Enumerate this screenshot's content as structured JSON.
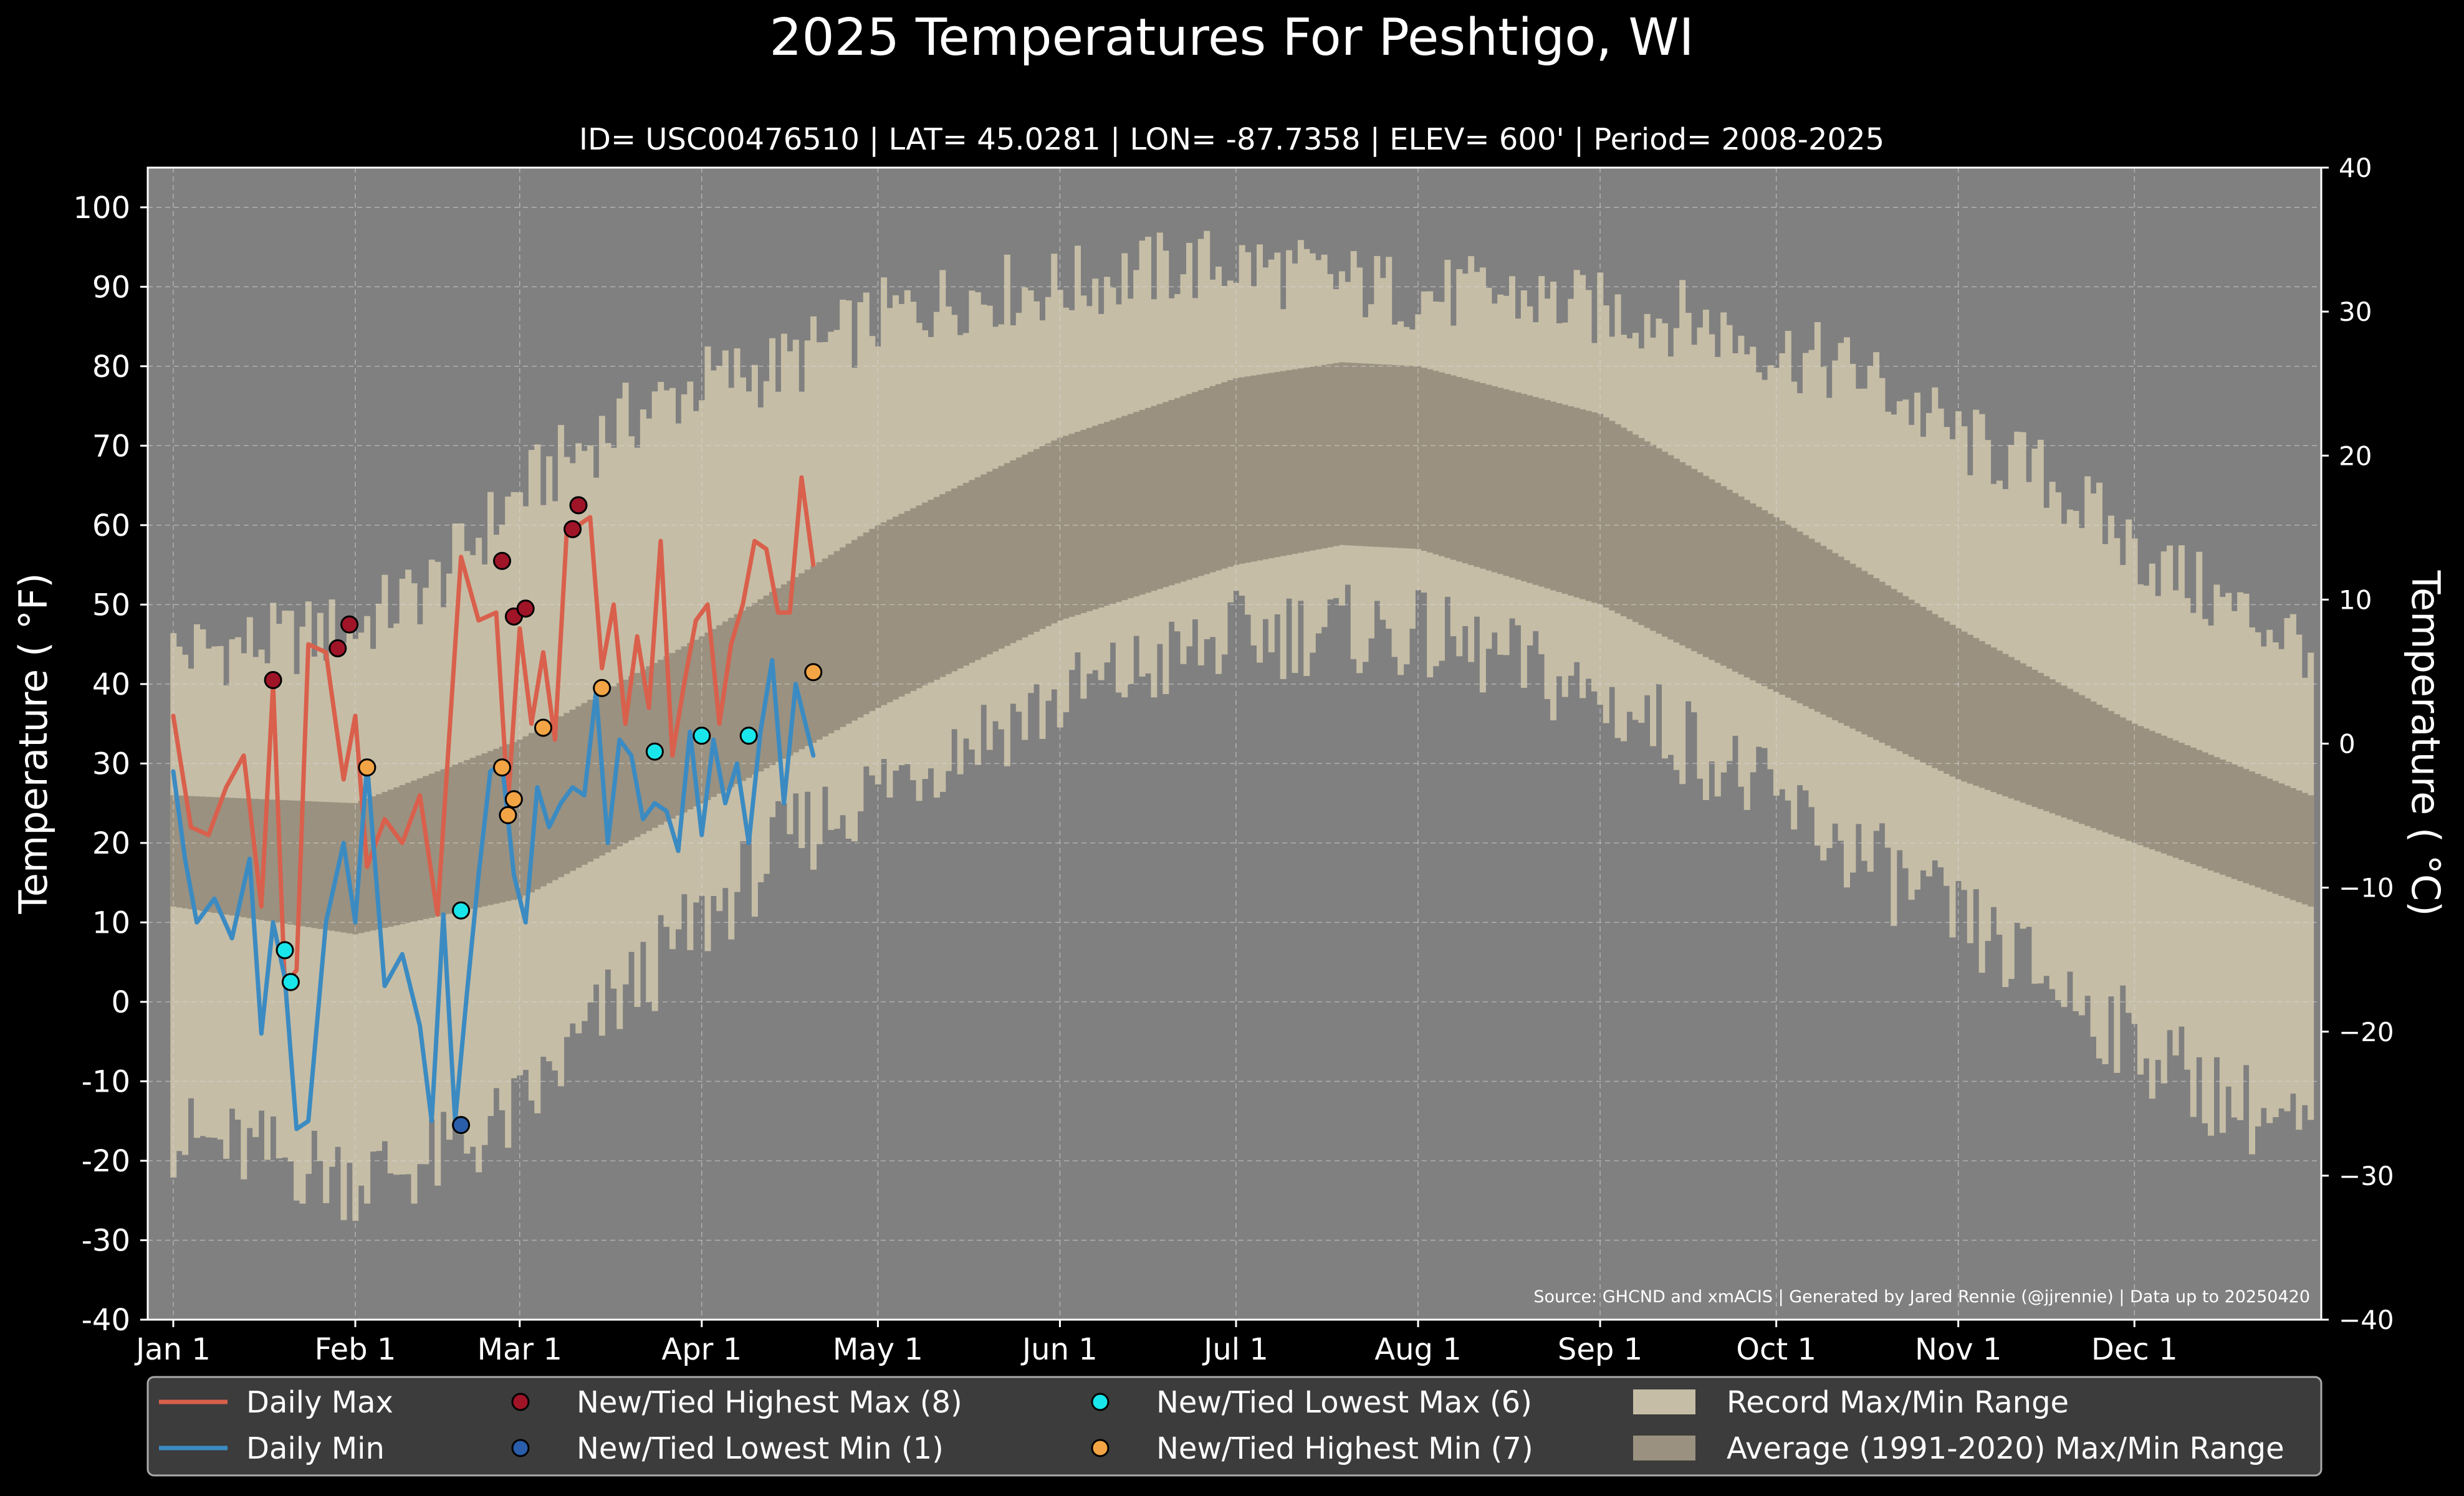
{
  "chart_data": {
    "type": "line",
    "title": "2025 Temperatures For Peshtigo, WI",
    "subtitle": "ID= USC00476510 | LAT= 45.0281 | LON= -87.7358 | ELEV= 600' | Period= 2008-2025",
    "ylabel": "Temperature ( °F)",
    "ylabel_right": "Temperature ( °C)",
    "source": "Source: GHCND and xmACIS | Generated by Jared Rennie (@jjrennie) | Data up to 20250420",
    "ylim": [
      -40,
      105
    ],
    "ylim_right": [
      -40,
      40
    ],
    "grid": true,
    "legend_position": "bottom",
    "x_tick_labels": [
      "Jan 1",
      "Feb 1",
      "Mar 1",
      "Apr 1",
      "May 1",
      "Jun 1",
      "Jul 1",
      "Aug 1",
      "Sep 1",
      "Oct 1",
      "Nov 1",
      "Dec 1"
    ],
    "x_tick_days": [
      1,
      32,
      60,
      91,
      121,
      152,
      182,
      213,
      244,
      274,
      305,
      335
    ],
    "y_ticks": [
      100,
      90,
      80,
      70,
      60,
      50,
      40,
      30,
      20,
      10,
      0,
      -10,
      -20,
      -30,
      -40
    ],
    "y_ticks_right": [
      40,
      30,
      20,
      10,
      0,
      -10,
      -20,
      -30,
      -40
    ],
    "record_max_anchors": {
      "day": [
        1,
        15,
        32,
        46,
        60,
        75,
        91,
        105,
        121,
        136,
        152,
        167,
        182,
        197,
        213,
        228,
        244,
        259,
        274,
        289,
        305,
        320,
        335,
        350,
        365
      ],
      "value": [
        44,
        45,
        47,
        53,
        64,
        72,
        78,
        80,
        86,
        89,
        90,
        92,
        93,
        91,
        89,
        89,
        87,
        86,
        82,
        79,
        71,
        66,
        57,
        50,
        45
      ]
    },
    "record_min_anchors": {
      "day": [
        1,
        15,
        32,
        46,
        60,
        75,
        91,
        105,
        121,
        136,
        152,
        167,
        182,
        197,
        213,
        228,
        244,
        259,
        274,
        289,
        305,
        320,
        335,
        350,
        365
      ],
      "value": [
        -17,
        -19,
        -22,
        -20,
        -14,
        -1,
        10,
        20,
        27,
        33,
        38,
        42,
        46,
        47,
        46,
        43,
        38,
        33,
        25,
        18,
        10,
        3,
        -5,
        -12,
        -17
      ]
    },
    "normal_max_anchors": {
      "day": [
        1,
        32,
        60,
        91,
        121,
        152,
        182,
        200,
        213,
        244,
        274,
        305,
        335,
        365
      ],
      "value": [
        26,
        25,
        33,
        46,
        60,
        71,
        78.5,
        80.5,
        80,
        74,
        61,
        47,
        35,
        26
      ]
    },
    "normal_min_anchors": {
      "day": [
        1,
        32,
        60,
        91,
        121,
        152,
        182,
        200,
        213,
        244,
        274,
        305,
        335,
        365
      ],
      "value": [
        12,
        8.5,
        13,
        25,
        37,
        48,
        55,
        57.5,
        57,
        50,
        39,
        28,
        20,
        12
      ]
    },
    "series": [
      {
        "name": "Daily Max",
        "color": "#d9604c",
        "x": [
          1,
          4,
          7,
          10,
          13,
          16,
          18,
          20,
          22,
          24,
          27,
          30,
          32,
          34,
          37,
          40,
          43,
          46,
          50,
          53,
          56,
          58,
          60,
          62,
          64,
          66,
          68,
          70,
          72,
          74,
          76,
          78,
          80,
          82,
          84,
          86,
          88,
          90,
          92,
          94,
          96,
          98,
          100,
          102,
          104,
          106,
          108,
          110
        ],
        "values": [
          36,
          22,
          21,
          27,
          31,
          12,
          40,
          2,
          4,
          45,
          44,
          28,
          36,
          17,
          23,
          20,
          26,
          11,
          56,
          48,
          49,
          25,
          47,
          35,
          44,
          33,
          59,
          60,
          61,
          42,
          50,
          35,
          46,
          37,
          58,
          31,
          40,
          48,
          50,
          35,
          45,
          50,
          58,
          57,
          49,
          49,
          66,
          55
        ]
      },
      {
        "name": "Daily Min",
        "color": "#3b8bc2",
        "x": [
          1,
          3,
          5,
          8,
          11,
          14,
          16,
          18,
          20,
          22,
          24,
          27,
          30,
          32,
          34,
          37,
          40,
          43,
          45,
          47,
          49,
          51,
          53,
          55,
          57,
          59,
          61,
          63,
          65,
          67,
          69,
          71,
          73,
          75,
          77,
          79,
          81,
          83,
          85,
          87,
          89,
          91,
          93,
          95,
          97,
          99,
          101,
          103,
          105,
          107,
          110
        ],
        "values": [
          29,
          18,
          10,
          13,
          8,
          18,
          -4,
          10,
          3,
          -16,
          -15,
          10,
          20,
          10,
          30,
          2,
          6,
          -3,
          -15,
          11,
          -15,
          1,
          16,
          29,
          30,
          16,
          10,
          27,
          22,
          25,
          27,
          26,
          39,
          20,
          33,
          31,
          23,
          25,
          24,
          19,
          34,
          21,
          33,
          25,
          30,
          20,
          34,
          43,
          25,
          40,
          31
        ]
      }
    ],
    "records": [
      {
        "name": "New/Tied Highest Max (8)",
        "color": "#a01428",
        "points": [
          [
            18,
            40.5
          ],
          [
            29,
            44.5
          ],
          [
            31,
            47.5
          ],
          [
            57,
            55.5
          ],
          [
            59,
            48.5
          ],
          [
            61,
            49.5
          ],
          [
            69,
            59.5
          ],
          [
            70,
            62.5
          ]
        ]
      },
      {
        "name": "New/Tied Lowest Min (1)",
        "color": "#2a5daa",
        "points": [
          [
            50,
            -15.5
          ]
        ]
      },
      {
        "name": "New/Tied Lowest Max (6)",
        "color": "#19e6ea",
        "points": [
          [
            20,
            6.5
          ],
          [
            21,
            2.5
          ],
          [
            50,
            11.5
          ],
          [
            83,
            31.5
          ],
          [
            91,
            33.5
          ],
          [
            99,
            33.5
          ]
        ]
      },
      {
        "name": "New/Tied Highest Min (7)",
        "color": "#f3a444",
        "points": [
          [
            34,
            29.5
          ],
          [
            57,
            29.5
          ],
          [
            58,
            23.5
          ],
          [
            59,
            25.5
          ],
          [
            64,
            34.5
          ],
          [
            74,
            39.5
          ],
          [
            110,
            41.5
          ]
        ]
      }
    ],
    "legend": [
      {
        "label": "Daily Max",
        "kind": "line",
        "color": "#d9604c"
      },
      {
        "label": "Daily Min",
        "kind": "line",
        "color": "#3b8bc2"
      },
      {
        "label": "New/Tied Highest Max (8)",
        "kind": "marker",
        "color": "#a01428"
      },
      {
        "label": "New/Tied Lowest Min (1)",
        "kind": "marker",
        "color": "#2a5daa"
      },
      {
        "label": "New/Tied Lowest Max (6)",
        "kind": "marker",
        "color": "#19e6ea"
      },
      {
        "label": "New/Tied Highest Min (7)",
        "kind": "marker",
        "color": "#f3a444"
      },
      {
        "label": "Record Max/Min Range",
        "kind": "patch",
        "color": "#c6bda6"
      },
      {
        "label": "Average (1991-2020) Max/Min Range",
        "kind": "patch",
        "color": "#9a9180"
      }
    ],
    "colors": {
      "background": "#000000",
      "plot_background": "#808080",
      "record_band": "#c6bda6",
      "normal_band": "#9a9180",
      "legend_background": "#3c3c3c"
    }
  }
}
